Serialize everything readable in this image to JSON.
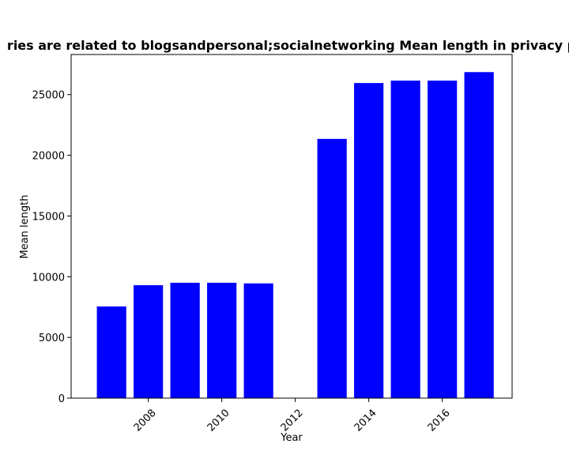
{
  "chart_data": {
    "type": "bar",
    "title": "ries are related to blogsandpersonal;socialnetworking Mean length in privacy p",
    "xlabel": "Year",
    "ylabel": "Mean length",
    "x": [
      2007,
      2008,
      2009,
      2010,
      2011,
      2013,
      2014,
      2015,
      2016,
      2017
    ],
    "values": [
      7550,
      9300,
      9500,
      9500,
      9450,
      21350,
      25950,
      26150,
      26150,
      26850
    ],
    "xlim": [
      2005.9,
      2017.9
    ],
    "ylim": [
      0,
      28300
    ],
    "xticks": [
      2008,
      2010,
      2012,
      2014,
      2016
    ],
    "yticks": [
      0,
      5000,
      10000,
      15000,
      20000,
      25000
    ],
    "bar_color": "#0000ff",
    "grid": false
  }
}
